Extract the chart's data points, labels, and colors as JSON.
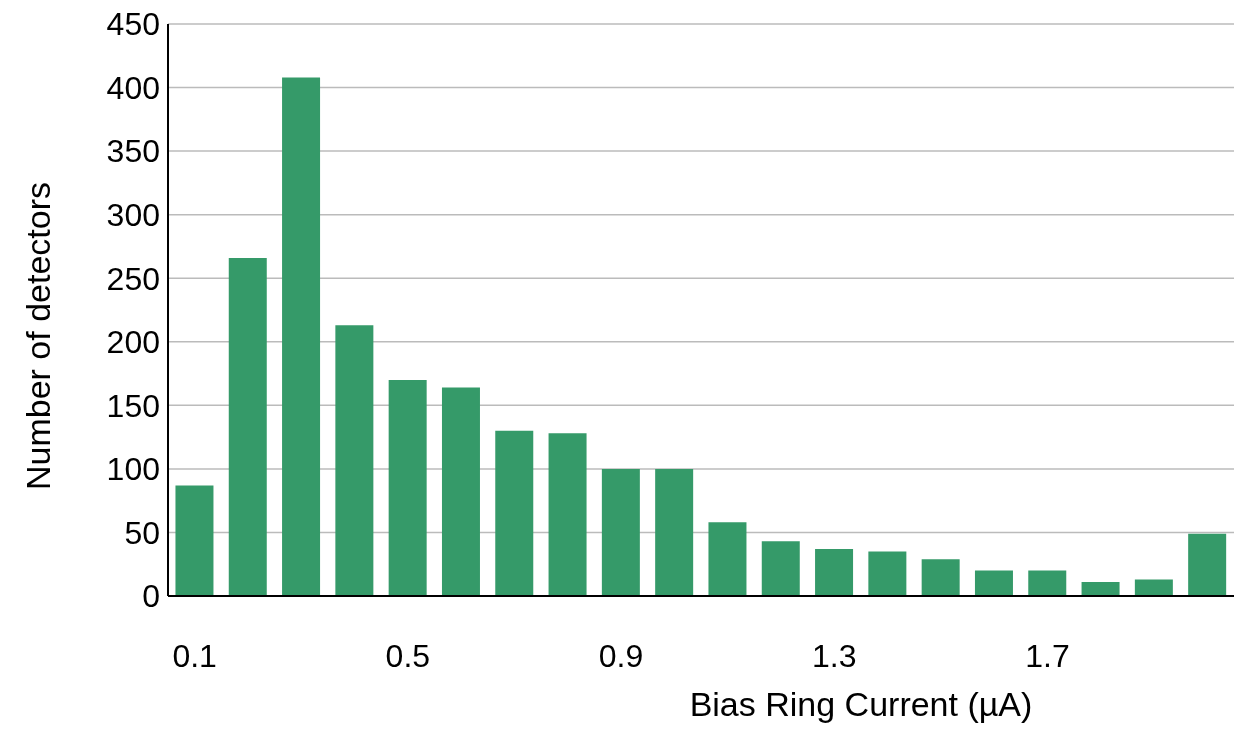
{
  "chart_data": {
    "type": "bar",
    "xlabel": "Bias Ring Current (µA)",
    "ylabel": "Number of detectors",
    "categories": [
      "0.1",
      null,
      null,
      null,
      "0.5",
      null,
      null,
      null,
      "0.9",
      null,
      null,
      null,
      "1.3",
      null,
      null,
      null,
      "1.7",
      null,
      null,
      null
    ],
    "values": [
      87,
      266,
      408,
      213,
      170,
      164,
      130,
      128,
      100,
      100,
      58,
      43,
      37,
      35,
      29,
      20,
      20,
      11,
      13,
      49
    ],
    "color": "#359a69",
    "ylim": [
      0,
      450
    ],
    "yticks": [
      0,
      50,
      100,
      150,
      200,
      250,
      300,
      350,
      400,
      450
    ],
    "grid": "y",
    "legend": false
  }
}
